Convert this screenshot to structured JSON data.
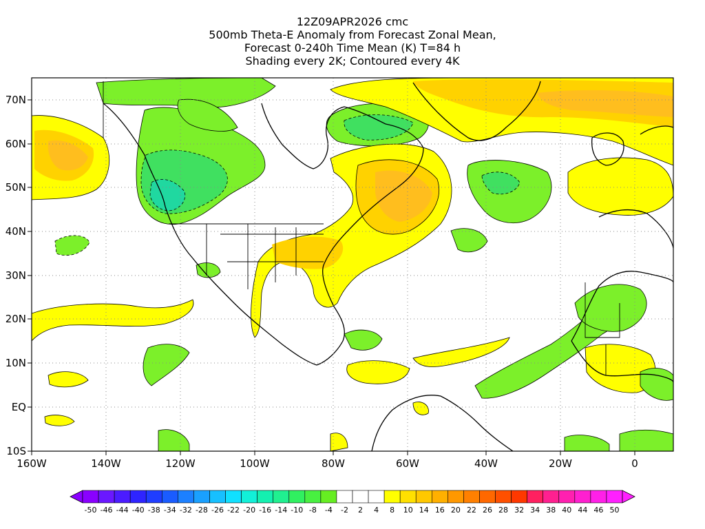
{
  "titles": {
    "line1": "12Z09APR2026 cmc",
    "line2": "500mb Theta-E Anomaly from Forecast Zonal Mean,",
    "line3": "Forecast 0-240h Time Mean (K) T=84 h",
    "line4": "Shading every 2K; Contoured every 4K"
  },
  "lat_labels": [
    "70N",
    "60N",
    "50N",
    "40N",
    "30N",
    "20N",
    "10N",
    "EQ",
    "10S"
  ],
  "lon_labels": [
    "160W",
    "140W",
    "120W",
    "100W",
    "80W",
    "60W",
    "40W",
    "20W",
    "0"
  ],
  "colorbar": {
    "labels": [
      "-50",
      "-46",
      "-44",
      "-40",
      "-38",
      "-34",
      "-32",
      "-28",
      "-26",
      "-22",
      "-20",
      "-16",
      "-14",
      "-10",
      "-8",
      "-4",
      "-2",
      "2",
      "4",
      "8",
      "10",
      "14",
      "16",
      "20",
      "22",
      "26",
      "28",
      "32",
      "34",
      "38",
      "40",
      "44",
      "46",
      "50"
    ],
    "colors": [
      "#8a00ff",
      "#6a18ff",
      "#4b1cff",
      "#2e24ff",
      "#1f3dff",
      "#1a5cff",
      "#1c80ff",
      "#1aa0ff",
      "#17c0ff",
      "#10e0ff",
      "#12f0d8",
      "#14f0b0",
      "#20f090",
      "#30f060",
      "#48f040",
      "#66ee22",
      "#ffffff",
      "#ffffff",
      "#ffffff",
      "#ffff00",
      "#ffe000",
      "#ffc800",
      "#ffb000",
      "#ff9800",
      "#ff8000",
      "#ff6800",
      "#ff5000",
      "#ff3800",
      "#ff2060",
      "#ff2090",
      "#ff20b0",
      "#ff20d0",
      "#ff20e8",
      "#ff20ff"
    ]
  },
  "palette": {
    "green_light": "#7cf02a",
    "green_mid": "#40e060",
    "green_teal": "#20d8a0",
    "yellow": "#ffff00",
    "gold": "#ffd200",
    "orange_light": "#ffbe1e",
    "orange": "#ffa01e"
  }
}
